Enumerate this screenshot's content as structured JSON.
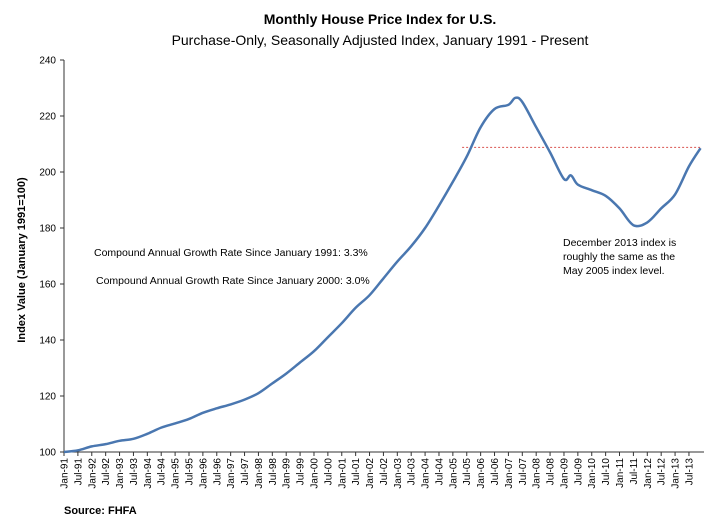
{
  "chart_data": {
    "type": "line",
    "title": "Monthly House Price Index for U.S.",
    "subtitle": "Purchase-Only, Seasonally Adjusted Index, January 1991 - Present",
    "ylabel": "Index Value (January 1991=100)",
    "xlabel": "",
    "ylim": [
      100,
      240
    ],
    "yticks": [
      100,
      120,
      140,
      160,
      180,
      200,
      220,
      240
    ],
    "grid": false,
    "legend": "none",
    "line_color": "#4a77b0",
    "reference_line_color": "#d9534f",
    "xtick_labels": [
      "Jan-91",
      "Jul-91",
      "Jan-92",
      "Jul-92",
      "Jan-93",
      "Jul-93",
      "Jan-94",
      "Jul-94",
      "Jan-95",
      "Jul-95",
      "Jan-96",
      "Jul-96",
      "Jan-97",
      "Jul-97",
      "Jan-98",
      "Jul-98",
      "Jan-99",
      "Jul-99",
      "Jan-00",
      "Jul-00",
      "Jan-01",
      "Jul-01",
      "Jan-02",
      "Jul-02",
      "Jan-03",
      "Jul-03",
      "Jan-04",
      "Jul-04",
      "Jan-05",
      "Jul-05",
      "Jan-06",
      "Jul-06",
      "Jan-07",
      "Jul-07",
      "Jan-08",
      "Jul-08",
      "Jan-09",
      "Jul-09",
      "Jan-10",
      "Jul-10",
      "Jan-11",
      "Jul-11",
      "Jan-12",
      "Jul-12",
      "Jan-13",
      "Jul-13"
    ],
    "series": [
      {
        "x": [
          "Jan-91",
          "Jul-91",
          "Jan-92",
          "Jul-92",
          "Jan-93",
          "Jul-93",
          "Jan-94",
          "Jul-94",
          "Jan-95",
          "Jul-95",
          "Jan-96",
          "Jul-96",
          "Jan-97",
          "Jul-97",
          "Jan-98",
          "Jul-98",
          "Jan-99",
          "Jul-99",
          "Jan-00",
          "Jul-00",
          "Jan-01",
          "Jul-01",
          "Jan-02",
          "Jul-02",
          "Jan-03",
          "Jul-03",
          "Jan-04",
          "Jul-04",
          "Jan-05",
          "Jul-05",
          "Jan-06",
          "Jul-06",
          "Jan-07",
          "Apr-07",
          "Jul-07",
          "Jan-08",
          "Jul-08",
          "Jan-09",
          "Apr-09",
          "Jul-09",
          "Jan-10",
          "Jul-10",
          "Jan-11",
          "Jul-11",
          "Jan-12",
          "Jul-12",
          "Jan-13",
          "Jul-13",
          "Dec-13"
        ],
        "values": [
          100.0,
          100.6,
          102.0,
          102.8,
          104.0,
          104.7,
          106.5,
          108.7,
          110.2,
          111.8,
          114.0,
          115.6,
          117.0,
          118.7,
          121.0,
          124.5,
          128.0,
          132.0,
          136.0,
          141.0,
          146.0,
          151.5,
          156.0,
          162.0,
          168.0,
          173.5,
          180.0,
          188.0,
          196.5,
          205.5,
          216.0,
          222.5,
          224.0,
          226.5,
          225.0,
          216.0,
          207.0,
          197.5,
          198.8,
          195.5,
          193.5,
          191.5,
          187.0,
          181.0,
          182.0,
          187.0,
          192.0,
          202.0,
          208.5
        ]
      }
    ],
    "reference_line": {
      "value": 208.8,
      "from": "May-05",
      "to": "Dec-13"
    },
    "annotations": [
      {
        "text": "Compound Annual Growth Rate Since January 1991:  3.3%"
      },
      {
        "text": "Compound Annual Growth Rate Since January 2000:  3.0%"
      },
      {
        "lines": [
          "December 2013 index is",
          "roughly the same as the",
          "May 2005 index level."
        ]
      }
    ],
    "source": "Source: FHFA"
  }
}
